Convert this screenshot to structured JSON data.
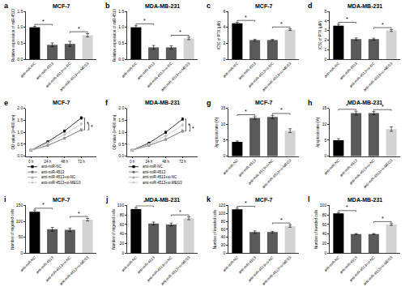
{
  "chart_data": [
    {
      "type": "bar",
      "panel_label": "a",
      "title": "MCF-7",
      "y_label": "Relative expression of miR-4513",
      "categories": [
        "anti-miR-NC",
        "anti-miR-4513",
        "anti-miR-4513+si-NC",
        "anti-miR-4513+si-MEG3"
      ],
      "values": [
        1.0,
        0.45,
        0.48,
        0.75
      ],
      "errors": [
        0.03,
        0.06,
        0.08,
        0.05
      ],
      "colors": [
        "#000000",
        "#5a5a5a",
        "#5a5a5a",
        "#d3d3d3"
      ],
      "grid": false,
      "ylim": [
        0,
        1.5
      ],
      "yticks": [
        {
          "value": 0,
          "label": "0.0"
        },
        {
          "value": 0.5,
          "label": "0.5"
        },
        {
          "value": 1,
          "label": "1.0"
        },
        {
          "value": 1.5,
          "label": "1.5"
        }
      ],
      "annotations": [
        {
          "text": "*",
          "between": [
            0,
            1
          ]
        },
        {
          "text": "*",
          "between": [
            2,
            3
          ]
        }
      ]
    },
    {
      "type": "bar",
      "panel_label": "b",
      "title": "MDA-MB-231",
      "y_label": "Relative expression of miR-4513",
      "categories": [
        "anti-miR-NC",
        "anti-miR-4513",
        "anti-miR-4513+si-NC",
        "anti-miR-4513+si-MEG3"
      ],
      "values": [
        1.0,
        0.37,
        0.37,
        0.65
      ],
      "errors": [
        0.05,
        0.06,
        0.05,
        0.04
      ],
      "colors": [
        "#000000",
        "#5a5a5a",
        "#5a5a5a",
        "#d3d3d3"
      ],
      "grid": false,
      "ylim": [
        0,
        1.5
      ],
      "yticks": [
        {
          "value": 0,
          "label": "0.0"
        },
        {
          "value": 0.5,
          "label": "0.5"
        },
        {
          "value": 1,
          "label": "1.0"
        },
        {
          "value": 1.5,
          "label": "1.5"
        }
      ],
      "annotations": [
        {
          "text": "*",
          "between": [
            0,
            1
          ]
        },
        {
          "text": "*",
          "between": [
            2,
            3
          ]
        }
      ]
    },
    {
      "type": "bar",
      "panel_label": "c",
      "title": "MCF-7",
      "y_label": "IC50 of PTX (μM)",
      "categories": [
        "anti-miR-NC",
        "anti-miR-4513",
        "anti-miR-4513+si-NC",
        "anti-miR-4513+si-MEG3"
      ],
      "values": [
        4.5,
        2.4,
        2.4,
        3.7
      ],
      "errors": [
        0.12,
        0.1,
        0.08,
        0.1
      ],
      "colors": [
        "#000000",
        "#5a5a5a",
        "#5a5a5a",
        "#d3d3d3"
      ],
      "grid": false,
      "ylim": [
        0,
        6
      ],
      "yticks": [
        0,
        2,
        4,
        6
      ],
      "annotations": [
        {
          "text": "*",
          "between": [
            0,
            1
          ]
        },
        {
          "text": "*",
          "between": [
            2,
            3
          ]
        }
      ]
    },
    {
      "type": "bar",
      "panel_label": "d",
      "title": "MDA-MB-231",
      "y_label": "IC50 of PTX (μM)",
      "categories": [
        "anti-miR-NC",
        "anti-miR-4513",
        "anti-miR-4513+si-NC",
        "anti-miR-4513+si-MEG3"
      ],
      "values": [
        3.5,
        2.1,
        2.1,
        3.0
      ],
      "errors": [
        0.15,
        0.12,
        0.1,
        0.1
      ],
      "colors": [
        "#000000",
        "#5a5a5a",
        "#5a5a5a",
        "#d3d3d3"
      ],
      "grid": false,
      "ylim": [
        0,
        5
      ],
      "yticks": [
        0,
        1,
        2,
        3,
        4,
        5
      ],
      "annotations": [
        {
          "text": "*",
          "between": [
            0,
            1
          ]
        },
        {
          "text": "*",
          "between": [
            2,
            3
          ]
        }
      ]
    },
    {
      "type": "line",
      "panel_label": "e",
      "title": "MCF-7",
      "y_label": "OD value (λ=490 nm)",
      "categories": [
        "0 h",
        "24 h",
        "48 h",
        "72 h"
      ],
      "grid": false,
      "legend": "bottom",
      "series": [
        {
          "name": "anti-miR-NC",
          "color": "#000000",
          "marker": "square",
          "values": [
            0.25,
            0.6,
            1.05,
            1.6
          ],
          "errors": [
            0.02,
            0.04,
            0.05,
            0.06
          ]
        },
        {
          "name": "anti-miR-4513",
          "color": "#666666",
          "marker": "circle",
          "values": [
            0.25,
            0.45,
            0.75,
            1.1
          ],
          "errors": [
            0.02,
            0.03,
            0.04,
            0.05
          ]
        },
        {
          "name": "anti-miR-4513+si-NC",
          "color": "#999999",
          "marker": "triangle-up",
          "values": [
            0.25,
            0.45,
            0.75,
            1.1
          ],
          "errors": [
            0.02,
            0.03,
            0.04,
            0.05
          ]
        },
        {
          "name": "anti-miR-4513+si-MEG3",
          "color": "#c0c0c0",
          "marker": "diamond",
          "values": [
            0.25,
            0.55,
            0.9,
            1.35
          ],
          "errors": [
            0.02,
            0.03,
            0.04,
            0.05
          ]
        }
      ],
      "ylim": [
        0,
        2
      ],
      "yticks": [
        {
          "value": 0,
          "label": "0.0"
        },
        {
          "value": 0.5,
          "label": "0.5"
        },
        {
          "value": 1,
          "label": "1.0"
        },
        {
          "value": 1.5,
          "label": "1.5"
        },
        {
          "value": 2,
          "label": "2.0"
        }
      ],
      "annotations": [
        {
          "text": "*",
          "between": [
            0,
            1
          ]
        },
        {
          "text": "*",
          "between": [
            2,
            3
          ]
        }
      ]
    },
    {
      "type": "line",
      "panel_label": "f",
      "title": "MDA-MB-231",
      "y_label": "OD value (λ=490 nm)",
      "categories": [
        "0 h",
        "24 h",
        "48 h",
        "72 h"
      ],
      "grid": false,
      "legend": "bottom",
      "series": [
        {
          "name": "anti-miR-NC",
          "color": "#000000",
          "marker": "square",
          "values": [
            0.25,
            0.55,
            1.0,
            1.55
          ],
          "errors": [
            0.02,
            0.04,
            0.05,
            0.06
          ]
        },
        {
          "name": "anti-miR-4513",
          "color": "#666666",
          "marker": "circle",
          "values": [
            0.25,
            0.45,
            0.7,
            1.05
          ],
          "errors": [
            0.02,
            0.03,
            0.04,
            0.05
          ]
        },
        {
          "name": "anti-miR-4513+si-NC",
          "color": "#999999",
          "marker": "triangle-up",
          "values": [
            0.25,
            0.45,
            0.7,
            1.05
          ],
          "errors": [
            0.02,
            0.03,
            0.04,
            0.05
          ]
        },
        {
          "name": "anti-miR-4513+si-MEG3",
          "color": "#c0c0c0",
          "marker": "diamond",
          "values": [
            0.25,
            0.5,
            0.85,
            1.3
          ],
          "errors": [
            0.02,
            0.03,
            0.04,
            0.05
          ]
        }
      ],
      "ylim": [
        0,
        2
      ],
      "yticks": [
        {
          "value": 0,
          "label": "0.0"
        },
        {
          "value": 0.5,
          "label": "0.5"
        },
        {
          "value": 1,
          "label": "1.0"
        },
        {
          "value": 1.5,
          "label": "1.5"
        },
        {
          "value": 2,
          "label": "2.0"
        }
      ],
      "annotations": [
        {
          "text": "*",
          "between": [
            0,
            1
          ]
        },
        {
          "text": "*",
          "between": [
            2,
            3
          ]
        }
      ]
    },
    {
      "type": "bar",
      "panel_label": "g",
      "title": "MCF-7",
      "y_label": "Apoptosis rate (%)",
      "categories": [
        "anti-miR-NC",
        "anti-miR-4513",
        "anti-miR-4513+si-NC",
        "anti-miR-4513+si-MEG3"
      ],
      "values": [
        4.5,
        12.0,
        12.3,
        8.0
      ],
      "errors": [
        0.3,
        0.4,
        0.5,
        0.6
      ],
      "colors": [
        "#000000",
        "#5a5a5a",
        "#5a5a5a",
        "#d3d3d3"
      ],
      "grid": false,
      "ylim": [
        0,
        15
      ],
      "yticks": [
        0,
        5,
        10,
        15
      ],
      "annotations": [
        {
          "text": "*",
          "between": [
            0,
            1
          ]
        },
        {
          "text": "*",
          "between": [
            2,
            3
          ]
        }
      ]
    },
    {
      "type": "bar",
      "panel_label": "h",
      "title": "MDA-MB-231",
      "y_label": "Apoptosis rate (%)",
      "categories": [
        "anti-miR-NC",
        "anti-miR-4513",
        "anti-miR-4513+si-NC",
        "anti-miR-4513+si-MEG3"
      ],
      "values": [
        5.0,
        13.5,
        13.5,
        8.5
      ],
      "errors": [
        0.5,
        0.6,
        0.5,
        0.7
      ],
      "colors": [
        "#000000",
        "#5a5a5a",
        "#5a5a5a",
        "#d3d3d3"
      ],
      "grid": false,
      "ylim": [
        0,
        15
      ],
      "yticks": [
        0,
        5,
        10,
        15
      ],
      "annotations": [
        {
          "text": "*",
          "between": [
            0,
            1
          ]
        },
        {
          "text": "*",
          "between": [
            2,
            3
          ]
        }
      ]
    },
    {
      "type": "bar",
      "panel_label": "i",
      "title": "MCF-7",
      "y_label": "Number of migrated cells",
      "categories": [
        "anti-miR-NC",
        "anti-miR-4513",
        "anti-miR-4513+si-NC",
        "anti-miR-4513+si-MEG3"
      ],
      "values": [
        130,
        75,
        73,
        105
      ],
      "errors": [
        5,
        6,
        5,
        4
      ],
      "colors": [
        "#000000",
        "#5a5a5a",
        "#5a5a5a",
        "#d3d3d3"
      ],
      "grid": false,
      "ylim": [
        0,
        150
      ],
      "yticks": [
        0,
        50,
        100,
        150
      ],
      "annotations": [
        {
          "text": "*",
          "between": [
            0,
            1
          ]
        },
        {
          "text": "*",
          "between": [
            2,
            3
          ]
        }
      ]
    },
    {
      "type": "bar",
      "panel_label": "j",
      "title": "MDA-MB-231",
      "y_label": "Number of migrated cells",
      "categories": [
        "anti-miR-NC",
        "anti-miR-4513",
        "anti-miR-4513+si-NC",
        "anti-miR-4513+si-MEG3"
      ],
      "values": [
        92,
        62,
        60,
        73
      ],
      "errors": [
        3,
        3,
        3,
        3
      ],
      "colors": [
        "#000000",
        "#5a5a5a",
        "#5a5a5a",
        "#d3d3d3"
      ],
      "grid": false,
      "ylim": [
        0,
        100
      ],
      "yticks": [
        0,
        20,
        40,
        60,
        80,
        100
      ],
      "annotations": [
        {
          "text": "*",
          "between": [
            0,
            1
          ]
        },
        {
          "text": "*",
          "between": [
            2,
            3
          ]
        }
      ]
    },
    {
      "type": "bar",
      "panel_label": "k",
      "title": "MCF-7",
      "y_label": "Number of invaded cells",
      "categories": [
        "anti-miR-NC",
        "anti-miR-4513",
        "anti-miR-4513+si-NC",
        "anti-miR-4513+si-MEG3"
      ],
      "values": [
        110,
        53,
        53,
        68
      ],
      "errors": [
        3,
        3,
        2,
        3
      ],
      "colors": [
        "#000000",
        "#5a5a5a",
        "#5a5a5a",
        "#d3d3d3"
      ],
      "grid": false,
      "ylim": [
        0,
        120
      ],
      "yticks": [
        0,
        20,
        40,
        60,
        80,
        100,
        120
      ],
      "annotations": [
        {
          "text": "*",
          "between": [
            0,
            1
          ]
        },
        {
          "text": "*",
          "between": [
            2,
            3
          ]
        }
      ]
    },
    {
      "type": "bar",
      "panel_label": "l",
      "title": "MDA-MB-231",
      "y_label": "Number of invaded cells",
      "categories": [
        "anti-miR-NC",
        "anti-miR-4513",
        "anti-miR-4513+si-NC",
        "anti-miR-4513+si-MEG3"
      ],
      "values": [
        83,
        40,
        40,
        60
      ],
      "errors": [
        2,
        1,
        1,
        2
      ],
      "colors": [
        "#000000",
        "#5a5a5a",
        "#5a5a5a",
        "#d3d3d3"
      ],
      "grid": false,
      "ylim": [
        0,
        100
      ],
      "yticks": [
        0,
        20,
        40,
        60,
        80,
        100
      ],
      "annotations": [
        {
          "text": "*",
          "between": [
            0,
            1
          ]
        },
        {
          "text": "*",
          "between": [
            2,
            3
          ]
        }
      ]
    }
  ]
}
